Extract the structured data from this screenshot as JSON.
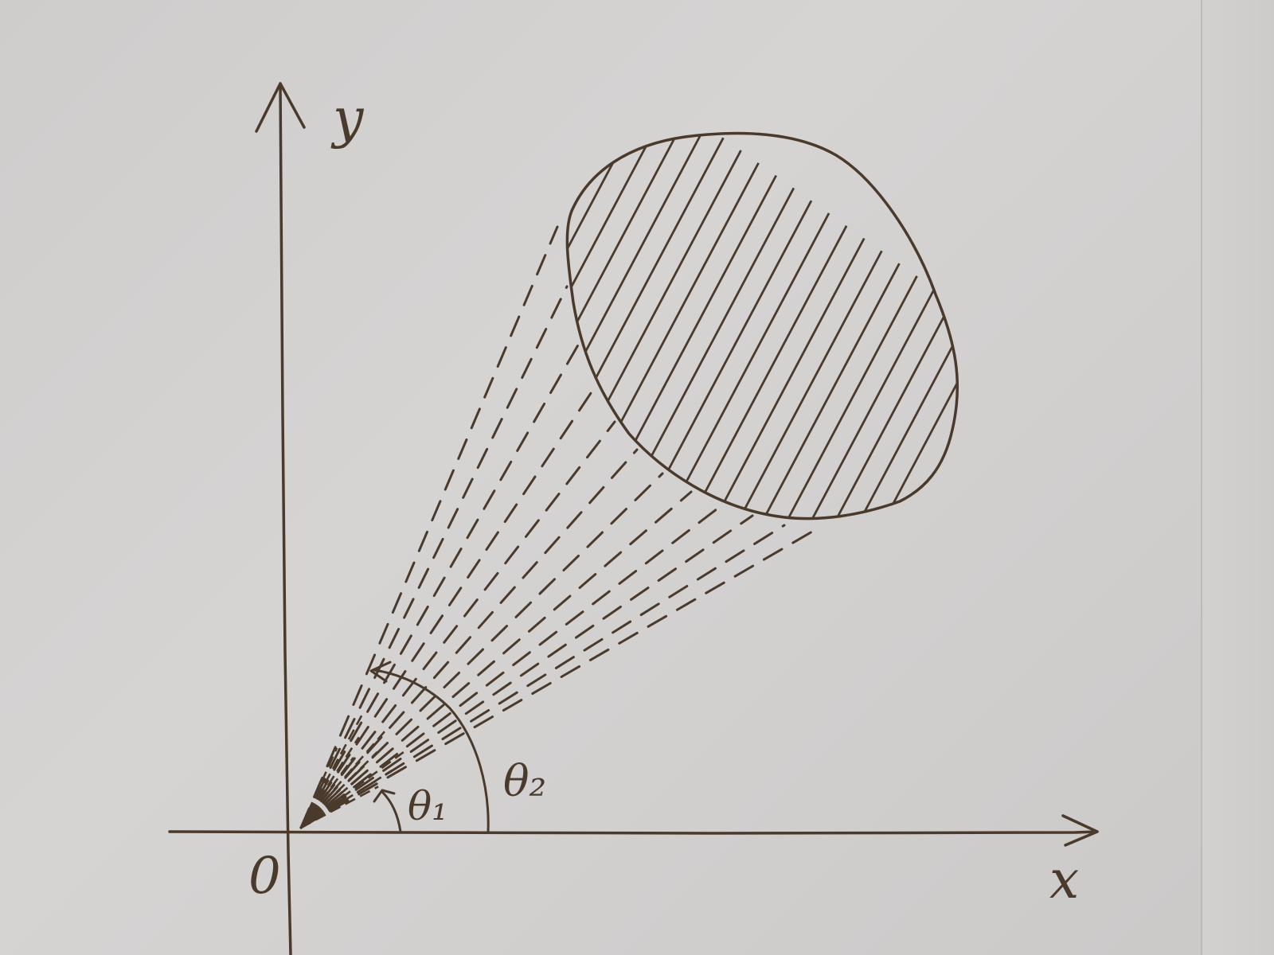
{
  "labels": {
    "y_axis": "y",
    "x_axis": "x",
    "origin": "0",
    "theta1": "θ₁",
    "theta2": "θ₂"
  },
  "colors": {
    "ink": "#4a3a2c",
    "paper": "#d1cfce"
  },
  "hatch_line_count": 20,
  "dashed_ray_count": 12
}
